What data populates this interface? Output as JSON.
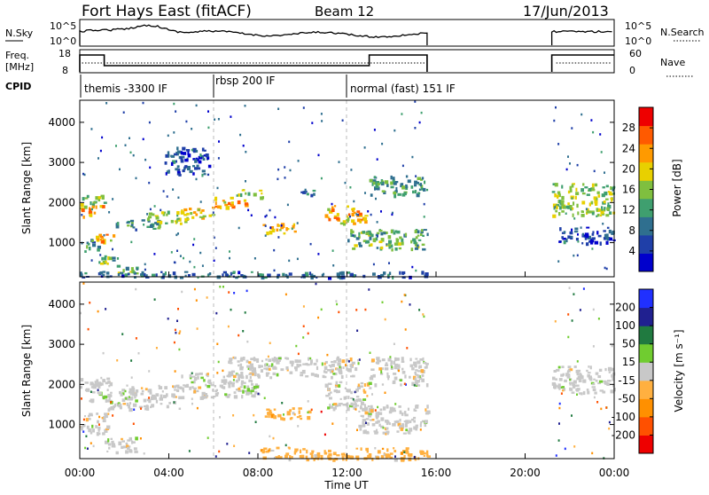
{
  "header": {
    "station": "Fort Hays East (fitACF)",
    "beam": "Beam 12",
    "date": "17/Jun/2013"
  },
  "panels": {
    "nsky": {
      "label": "N.Sky",
      "right_label": "N.Search",
      "left_ticks": [
        "10^5",
        "10^0"
      ],
      "right_ticks": [
        "10^5",
        "10^0"
      ]
    },
    "freq": {
      "label_line1": "Freq.",
      "label_line2": "[MHz]",
      "right_label": "Nave",
      "left_ticks": [
        "18",
        "8"
      ],
      "right_ticks": [
        "60",
        "0"
      ]
    },
    "cpid": {
      "label": "CPID",
      "segments": [
        {
          "name": "themis -3300 IF",
          "start": 0.0
        },
        {
          "name": "rbsp 200 IF",
          "start": 6.0
        },
        {
          "name": "normal (fast) 151 IF",
          "start": 12.0
        }
      ]
    }
  },
  "colors": {
    "power_scale": [
      "#0000cc",
      "#1f3fa8",
      "#2f6f8f",
      "#3f9f6f",
      "#7fbf3f",
      "#e8d000",
      "#ff9a00",
      "#ff5a00",
      "#ee0000"
    ],
    "velocity_scale": [
      "#ee0000",
      "#ff5000",
      "#ff9000",
      "#ffb040",
      "#c8c8c8",
      "#70cc30",
      "#207a40",
      "#202090",
      "#2030ff"
    ]
  },
  "chart_data": [
    {
      "type": "heatmap",
      "name": "power",
      "ylabel": "Slant Range [km]",
      "yticks": [
        1000,
        2000,
        3000,
        4000
      ],
      "ylim": [
        150,
        4550
      ],
      "xlim": [
        0,
        24
      ],
      "colorbar_label": "Power [dB]",
      "colorbar_ticks": [
        4,
        8,
        12,
        16,
        20,
        24,
        28
      ],
      "colorbar_range": [
        0,
        32
      ],
      "data_gaps": [
        [
          15.6,
          21.2
        ]
      ],
      "echo_bands": [
        {
          "t0": 0.0,
          "t1": 1.1,
          "r0": 1950,
          "r1": 2200,
          "value": 16
        },
        {
          "t0": 0.0,
          "t1": 1.0,
          "r0": 1650,
          "r1": 1950,
          "value": 22
        },
        {
          "t0": 0.6,
          "t1": 1.6,
          "r0": 1000,
          "r1": 1250,
          "value": 22
        },
        {
          "t0": 0.0,
          "t1": 0.8,
          "r0": 800,
          "r1": 1100,
          "value": 10
        },
        {
          "t0": 0.7,
          "t1": 1.7,
          "r0": 400,
          "r1": 700,
          "value": 14
        },
        {
          "t0": 1.5,
          "t1": 2.6,
          "r0": 250,
          "r1": 450,
          "value": 14
        },
        {
          "t0": 1.6,
          "t1": 3.6,
          "r0": 1350,
          "r1": 1600,
          "value": 12
        },
        {
          "t0": 3.0,
          "t1": 4.8,
          "r0": 1500,
          "r1": 1800,
          "value": 16
        },
        {
          "t0": 4.5,
          "t1": 6.0,
          "r0": 1600,
          "r1": 1900,
          "value": 20
        },
        {
          "t0": 6.0,
          "t1": 7.5,
          "r0": 1900,
          "r1": 2150,
          "value": 22
        },
        {
          "t0": 7.0,
          "t1": 8.2,
          "r0": 2150,
          "r1": 2350,
          "value": 14
        },
        {
          "t0": 3.8,
          "t1": 5.8,
          "r0": 2700,
          "r1": 3400,
          "value": 6
        },
        {
          "t0": 8.2,
          "t1": 9.7,
          "r0": 1250,
          "r1": 1500,
          "value": 20
        },
        {
          "t0": 9.8,
          "t1": 10.6,
          "r0": 2200,
          "r1": 2400,
          "value": 8
        },
        {
          "t0": 11.0,
          "t1": 12.8,
          "r0": 1500,
          "r1": 1950,
          "value": 22
        },
        {
          "t0": 12.0,
          "t1": 15.6,
          "r0": 850,
          "r1": 1350,
          "value": 14
        },
        {
          "t0": 13.0,
          "t1": 15.6,
          "r0": 2200,
          "r1": 2700,
          "value": 12
        },
        {
          "t0": 21.2,
          "t1": 24.0,
          "r0": 1700,
          "r1": 2500,
          "value": 16
        },
        {
          "t0": 21.5,
          "t1": 24.0,
          "r0": 1000,
          "r1": 1400,
          "value": 6
        },
        {
          "t0": 0.0,
          "t1": 15.6,
          "r0": 150,
          "r1": 300,
          "value": 8
        }
      ]
    },
    {
      "type": "heatmap",
      "name": "velocity",
      "ylabel": "Slant Range [km]",
      "yticks": [
        1000,
        2000,
        3000,
        4000
      ],
      "ylim": [
        150,
        4550
      ],
      "xlim": [
        0,
        24
      ],
      "xticks": [
        "00:00",
        "04:00",
        "08:00",
        "12:00",
        "16:00",
        "20:00",
        "00:00"
      ],
      "xlabel": "Time UT",
      "colorbar_label": "Velocity [m s⁻¹]",
      "colorbar_ticks": [
        -200,
        -100,
        -50,
        -15,
        15,
        50,
        100,
        200
      ],
      "colorbar_range": [
        -250,
        250
      ],
      "data_gaps": [
        [
          15.6,
          21.2
        ]
      ],
      "echo_bands": [
        {
          "t0": 0.0,
          "t1": 1.4,
          "r0": 1600,
          "r1": 2200,
          "value": 0
        },
        {
          "t0": 1.2,
          "t1": 4.5,
          "r0": 1400,
          "r1": 2000,
          "value": 0
        },
        {
          "t0": 4.5,
          "t1": 8.0,
          "r0": 1700,
          "r1": 2300,
          "value": 0
        },
        {
          "t0": 6.5,
          "t1": 12.5,
          "r0": 2200,
          "r1": 2700,
          "value": 0
        },
        {
          "t0": 0.0,
          "t1": 1.2,
          "r0": 800,
          "r1": 1300,
          "value": 0
        },
        {
          "t0": 1.0,
          "t1": 2.5,
          "r0": 300,
          "r1": 700,
          "value": 0
        },
        {
          "t0": 8.3,
          "t1": 10.3,
          "r0": 1150,
          "r1": 1450,
          "value": -60
        },
        {
          "t0": 11.0,
          "t1": 13.0,
          "r0": 1400,
          "r1": 2100,
          "value": 0
        },
        {
          "t0": 12.5,
          "t1": 15.6,
          "r0": 800,
          "r1": 1500,
          "value": 0
        },
        {
          "t0": 13.0,
          "t1": 15.6,
          "r0": 2000,
          "r1": 2700,
          "value": 0
        },
        {
          "t0": 8.0,
          "t1": 15.6,
          "r0": 150,
          "r1": 450,
          "value": -45
        },
        {
          "t0": 21.2,
          "t1": 24.0,
          "r0": 1800,
          "r1": 2500,
          "value": 0
        },
        {
          "t0": 7.2,
          "t1": 8.0,
          "r0": 1850,
          "r1": 2000,
          "value": 30
        }
      ]
    }
  ]
}
